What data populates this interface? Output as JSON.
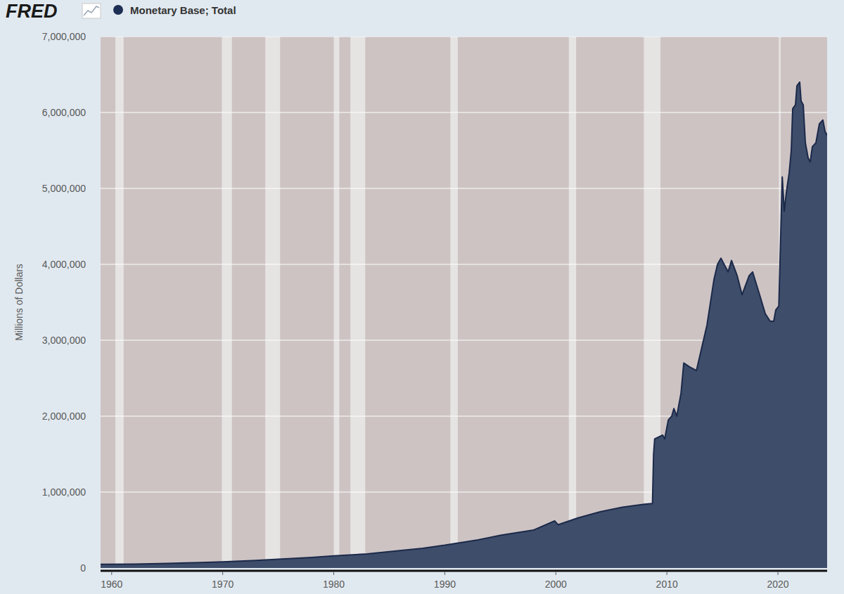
{
  "chart_data": {
    "type": "area",
    "logo": "FRED",
    "y_label": "Millions of Dollars",
    "x": [
      1959,
      1962,
      1965,
      1968,
      1970,
      1973,
      1975,
      1978,
      1980,
      1983,
      1985,
      1988,
      1990,
      1993,
      1995,
      1998,
      1999.9,
      2000.2,
      2002,
      2004,
      2006,
      2008.0,
      2008.7,
      2008.8,
      2008.9,
      2009.62,
      2009.8,
      2010.13,
      2010.44,
      2010.63,
      2010.89,
      2011.27,
      2011.52,
      2012.03,
      2012.66,
      2013.61,
      2014.24,
      2014.56,
      2014.87,
      2015.51,
      2015.82,
      2016.33,
      2016.77,
      2017.41,
      2017.72,
      2018.35,
      2018.86,
      2019.3,
      2019.62,
      2019.81,
      2020.08,
      2020.27,
      2020.39,
      2020.57,
      2020.76,
      2021.01,
      2021.2,
      2021.33,
      2021.58,
      2021.71,
      2021.96,
      2022.09,
      2022.28,
      2022.47,
      2022.72,
      2022.91,
      2023.1,
      2023.42,
      2023.73,
      2024.05,
      2024.24,
      2024.43
    ],
    "series": [
      {
        "name": "Monetary Base; Total",
        "color": "#3e4d6a",
        "values": [
          49000,
          52000,
          60000,
          72000,
          80000,
          100000,
          115000,
          140000,
          160000,
          185000,
          215000,
          260000,
          300000,
          370000,
          430000,
          500000,
          620000,
          570000,
          660000,
          740000,
          800000,
          840000,
          850000,
          1500000,
          1700000,
          1750000,
          1700000,
          1950000,
          2000000,
          2100000,
          2000000,
          2300000,
          2700000,
          2650000,
          2600000,
          3200000,
          3800000,
          4000000,
          4080000,
          3900000,
          4050000,
          3850000,
          3600000,
          3850000,
          3900000,
          3600000,
          3350000,
          3250000,
          3250000,
          3400000,
          3450000,
          4500000,
          5150000,
          4700000,
          4950000,
          5200000,
          5500000,
          6050000,
          6100000,
          6350000,
          6400000,
          6150000,
          6100000,
          5600000,
          5400000,
          5350000,
          5550000,
          5600000,
          5850000,
          5900000,
          5750000,
          5700000
        ]
      }
    ],
    "recessions": [
      [
        1960.33,
        1961.08
      ],
      [
        1969.92,
        1970.83
      ],
      [
        1973.83,
        1975.17
      ],
      [
        1980.0,
        1980.5
      ],
      [
        1981.5,
        1982.83
      ],
      [
        1990.5,
        1991.17
      ],
      [
        2001.17,
        2001.83
      ],
      [
        2007.92,
        2009.42
      ],
      [
        2020.08,
        2020.25
      ]
    ],
    "xlim": [
      1959,
      2024.43
    ],
    "xticks": [
      1960,
      1970,
      1980,
      1990,
      2000,
      2010,
      2020
    ],
    "ylim": [
      0,
      7000000
    ],
    "yticks": [
      0,
      {
        "value": 1000000,
        "label": "1,000,000"
      },
      {
        "value": 2000000,
        "label": "2,000,000"
      },
      {
        "value": 3000000,
        "label": "3,000,000"
      },
      {
        "value": 4000000,
        "label": "4,000,000"
      },
      {
        "value": 5000000,
        "label": "5,000,000"
      },
      {
        "value": 6000000,
        "label": "6,000,000"
      },
      {
        "value": 7000000,
        "label": "7,000,000"
      }
    ],
    "grid": true
  }
}
